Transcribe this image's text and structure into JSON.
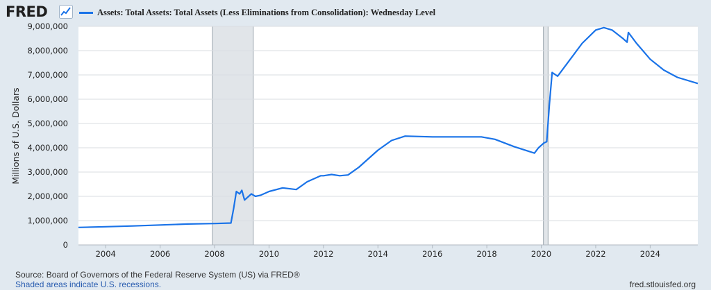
{
  "header": {
    "logo_text": "FRED",
    "logo_icon": "line-chart-icon"
  },
  "chart_data": {
    "type": "line",
    "title": "",
    "xlabel": "",
    "ylabel": "Millions of U.S. Dollars",
    "xlim": [
      2003.0,
      2025.75
    ],
    "ylim": [
      0,
      9000000
    ],
    "x_ticks": [
      "2004",
      "2006",
      "2008",
      "2010",
      "2012",
      "2014",
      "2016",
      "2018",
      "2020",
      "2022",
      "2024"
    ],
    "y_ticks": [
      "0",
      "1,000,000",
      "2,000,000",
      "3,000,000",
      "4,000,000",
      "5,000,000",
      "6,000,000",
      "7,000,000",
      "8,000,000",
      "9,000,000"
    ],
    "grid": "horizontal",
    "legend_position": "top-left",
    "line_color": "#1a73e8",
    "recessions": [
      {
        "start": 2007.92,
        "end": 2009.42
      },
      {
        "start": 2020.08,
        "end": 2020.25
      }
    ],
    "series": [
      {
        "name": "Assets: Total Assets: Total Assets (Less Eliminations from Consolidation): Wednesday Level",
        "x": [
          2003.0,
          2004.0,
          2005.0,
          2006.0,
          2007.0,
          2008.0,
          2008.6,
          2008.7,
          2008.8,
          2008.92,
          2009.0,
          2009.1,
          2009.2,
          2009.35,
          2009.5,
          2009.7,
          2010.0,
          2010.5,
          2011.0,
          2011.4,
          2011.9,
          2012.0,
          2012.3,
          2012.6,
          2012.9,
          2013.3,
          2014.0,
          2014.5,
          2015.0,
          2016.0,
          2017.0,
          2017.8,
          2018.3,
          2019.0,
          2019.75,
          2019.9,
          2020.1,
          2020.2,
          2020.3,
          2020.4,
          2020.6,
          2021.0,
          2021.5,
          2022.0,
          2022.3,
          2022.6,
          2023.0,
          2023.15,
          2023.2,
          2023.5,
          2024.0,
          2024.5,
          2025.0,
          2025.75
        ],
        "y": [
          720000,
          750000,
          780000,
          820000,
          860000,
          880000,
          900000,
          1500000,
          2200000,
          2100000,
          2250000,
          1850000,
          1950000,
          2100000,
          2000000,
          2050000,
          2200000,
          2350000,
          2280000,
          2600000,
          2850000,
          2850000,
          2900000,
          2850000,
          2880000,
          3200000,
          3900000,
          4300000,
          4480000,
          4450000,
          4450000,
          4450000,
          4350000,
          4050000,
          3780000,
          4000000,
          4200000,
          4250000,
          5800000,
          7100000,
          6950000,
          7550000,
          8300000,
          8850000,
          8950000,
          8850000,
          8500000,
          8350000,
          8750000,
          8300000,
          7650000,
          7200000,
          6900000,
          6650000
        ]
      }
    ]
  },
  "footer": {
    "source": "Source: Board of Governors of the Federal Reserve System (US) via FRED®",
    "note": "Shaded areas indicate U.S. recessions.",
    "site": "fred.stlouisfed.org"
  }
}
